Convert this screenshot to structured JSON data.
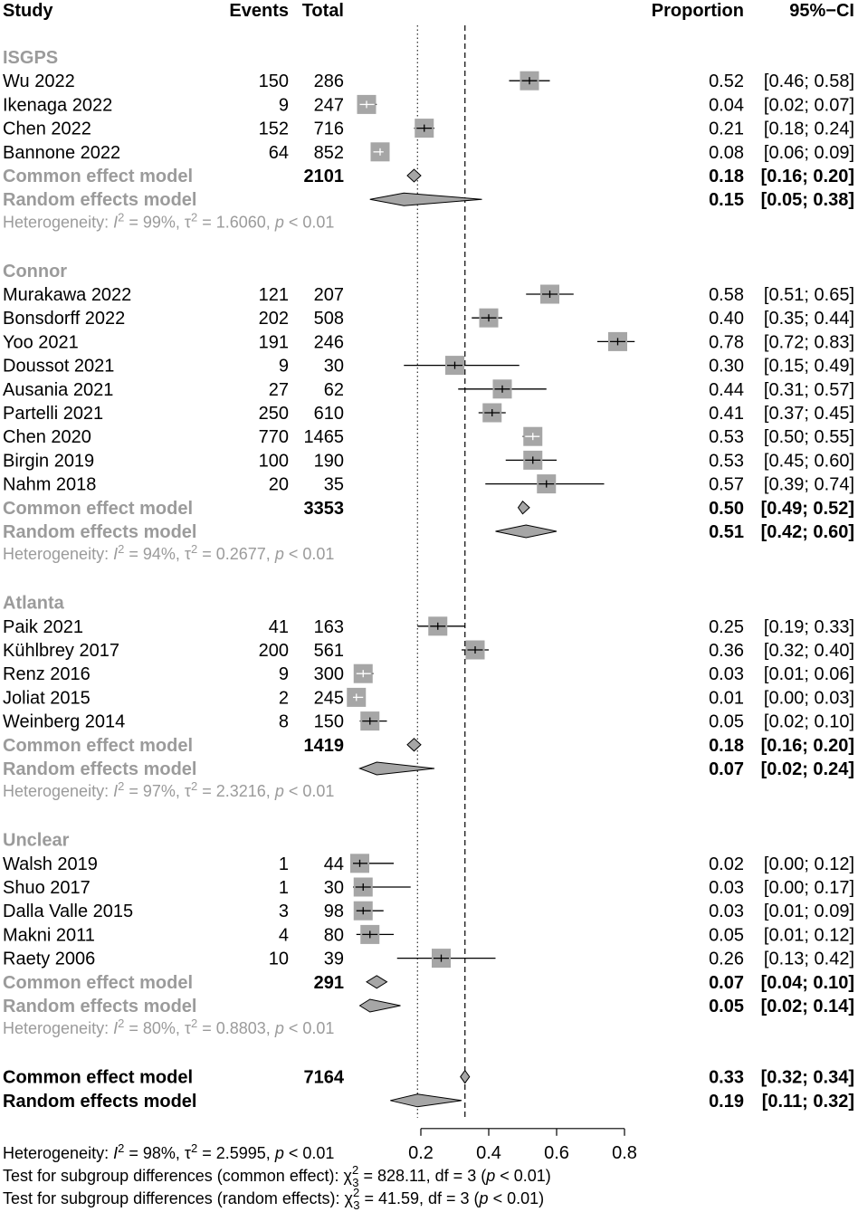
{
  "chart_data": {
    "type": "forest",
    "headers": {
      "study": "Study",
      "events": "Events",
      "total": "Total",
      "proportion": "Proportion",
      "ci": "95%−CI"
    },
    "x_axis": {
      "ticks": [
        "0.2",
        "0.4",
        "0.6",
        "0.8"
      ],
      "tick_values": [
        0.2,
        0.4,
        0.6,
        0.8
      ],
      "range": [
        0.2,
        0.8
      ]
    },
    "reference_lines": {
      "random_effects_overall": 0.19,
      "common_effect_overall": 0.33
    },
    "groups": [
      {
        "name": "ISGPS",
        "studies": [
          {
            "study": "Wu 2022",
            "events": "150",
            "total": "286",
            "prop": 0.52,
            "lo": 0.46,
            "hi": 0.58,
            "prop_text": "0.52",
            "ci_text": "[0.46; 0.58]",
            "weight": 0.9
          },
          {
            "study": "Ikenaga 2022",
            "events": "9",
            "total": "247",
            "prop": 0.04,
            "lo": 0.02,
            "hi": 0.07,
            "prop_text": "0.04",
            "ci_text": "[0.02; 0.07]",
            "weight": 0.9
          },
          {
            "study": "Chen 2022",
            "events": "152",
            "total": "716",
            "prop": 0.21,
            "lo": 0.18,
            "hi": 0.24,
            "prop_text": "0.21",
            "ci_text": "[0.18; 0.24]",
            "weight": 0.9
          },
          {
            "study": "Bannone 2022",
            "events": "64",
            "total": "852",
            "prop": 0.08,
            "lo": 0.06,
            "hi": 0.09,
            "prop_text": "0.08",
            "ci_text": "[0.06; 0.09]",
            "weight": 0.9
          }
        ],
        "common": {
          "label": "Common effect model",
          "total": "2101",
          "est": 0.18,
          "lo": 0.16,
          "hi": 0.2,
          "prop_text": "0.18",
          "ci_text": "[0.16; 0.20]"
        },
        "random": {
          "label": "Random effects model",
          "est": 0.15,
          "lo": 0.05,
          "hi": 0.38,
          "prop_text": "0.15",
          "ci_text": "[0.05; 0.38]"
        },
        "heterogeneity": {
          "prefix": "Heterogeneity: ",
          "i2_label": "I",
          "i2_val": " = 99%, ",
          "tau_label": "τ",
          "tau_val": " = 1.6060, ",
          "p_label": "p",
          "p_val": " < 0.01"
        }
      },
      {
        "name": "Connor",
        "studies": [
          {
            "study": "Murakawa 2022",
            "events": "121",
            "total": "207",
            "prop": 0.58,
            "lo": 0.51,
            "hi": 0.65,
            "prop_text": "0.58",
            "ci_text": "[0.51; 0.65]",
            "weight": 0.9
          },
          {
            "study": "Bonsdorff 2022",
            "events": "202",
            "total": "508",
            "prop": 0.4,
            "lo": 0.35,
            "hi": 0.44,
            "prop_text": "0.40",
            "ci_text": "[0.35; 0.44]",
            "weight": 0.9
          },
          {
            "study": "Yoo 2021",
            "events": "191",
            "total": "246",
            "prop": 0.78,
            "lo": 0.72,
            "hi": 0.83,
            "prop_text": "0.78",
            "ci_text": "[0.72; 0.83]",
            "weight": 0.9
          },
          {
            "study": "Doussot 2021",
            "events": "9",
            "total": "30",
            "prop": 0.3,
            "lo": 0.15,
            "hi": 0.49,
            "prop_text": "0.30",
            "ci_text": "[0.15; 0.49]",
            "weight": 0.9
          },
          {
            "study": "Ausania 2021",
            "events": "27",
            "total": "62",
            "prop": 0.44,
            "lo": 0.31,
            "hi": 0.57,
            "prop_text": "0.44",
            "ci_text": "[0.31; 0.57]",
            "weight": 0.9
          },
          {
            "study": "Partelli 2021",
            "events": "250",
            "total": "610",
            "prop": 0.41,
            "lo": 0.37,
            "hi": 0.45,
            "prop_text": "0.41",
            "ci_text": "[0.37; 0.45]",
            "weight": 0.9
          },
          {
            "study": "Chen 2020",
            "events": "770",
            "total": "1465",
            "prop": 0.53,
            "lo": 0.5,
            "hi": 0.55,
            "prop_text": "0.53",
            "ci_text": "[0.50; 0.55]",
            "weight": 0.9
          },
          {
            "study": "Birgin 2019",
            "events": "100",
            "total": "190",
            "prop": 0.53,
            "lo": 0.45,
            "hi": 0.6,
            "prop_text": "0.53",
            "ci_text": "[0.45; 0.60]",
            "weight": 0.9
          },
          {
            "study": "Nahm 2018",
            "events": "20",
            "total": "35",
            "prop": 0.57,
            "lo": 0.39,
            "hi": 0.74,
            "prop_text": "0.57",
            "ci_text": "[0.39; 0.74]",
            "weight": 0.9
          }
        ],
        "common": {
          "label": "Common effect model",
          "total": "3353",
          "est": 0.5,
          "lo": 0.49,
          "hi": 0.52,
          "prop_text": "0.50",
          "ci_text": "[0.49; 0.52]"
        },
        "random": {
          "label": "Random effects model",
          "est": 0.51,
          "lo": 0.42,
          "hi": 0.6,
          "prop_text": "0.51",
          "ci_text": "[0.42; 0.60]"
        },
        "heterogeneity": {
          "prefix": "Heterogeneity: ",
          "i2_label": "I",
          "i2_val": " = 94%, ",
          "tau_label": "τ",
          "tau_val": " = 0.2677, ",
          "p_label": "p",
          "p_val": " < 0.01"
        }
      },
      {
        "name": "Atlanta",
        "studies": [
          {
            "study": "Paik 2021",
            "events": "41",
            "total": "163",
            "prop": 0.25,
            "lo": 0.19,
            "hi": 0.33,
            "prop_text": "0.25",
            "ci_text": "[0.19; 0.33]",
            "weight": 0.9
          },
          {
            "study": "Kühlbrey 2017",
            "events": "200",
            "total": "561",
            "prop": 0.36,
            "lo": 0.32,
            "hi": 0.4,
            "prop_text": "0.36",
            "ci_text": "[0.32; 0.40]",
            "weight": 0.9
          },
          {
            "study": "Renz 2016",
            "events": "9",
            "total": "300",
            "prop": 0.03,
            "lo": 0.01,
            "hi": 0.06,
            "prop_text": "0.03",
            "ci_text": "[0.01; 0.06]",
            "weight": 0.9
          },
          {
            "study": "Joliat 2015",
            "events": "2",
            "total": "245",
            "prop": 0.01,
            "lo": 0.0,
            "hi": 0.03,
            "prop_text": "0.01",
            "ci_text": "[0.00; 0.03]",
            "weight": 0.9
          },
          {
            "study": "Weinberg 2014",
            "events": "8",
            "total": "150",
            "prop": 0.05,
            "lo": 0.02,
            "hi": 0.1,
            "prop_text": "0.05",
            "ci_text": "[0.02; 0.10]",
            "weight": 0.9
          }
        ],
        "common": {
          "label": "Common effect model",
          "total": "1419",
          "est": 0.18,
          "lo": 0.16,
          "hi": 0.2,
          "prop_text": "0.18",
          "ci_text": "[0.16; 0.20]"
        },
        "random": {
          "label": "Random effects model",
          "est": 0.07,
          "lo": 0.02,
          "hi": 0.24,
          "prop_text": "0.07",
          "ci_text": "[0.02; 0.24]"
        },
        "heterogeneity": {
          "prefix": "Heterogeneity: ",
          "i2_label": "I",
          "i2_val": " = 97%, ",
          "tau_label": "τ",
          "tau_val": " = 2.3216, ",
          "p_label": "p",
          "p_val": " < 0.01"
        }
      },
      {
        "name": "Unclear",
        "studies": [
          {
            "study": "Walsh 2019",
            "events": "1",
            "total": "44",
            "prop": 0.02,
            "lo": 0.0,
            "hi": 0.12,
            "prop_text": "0.02",
            "ci_text": "[0.00; 0.12]",
            "weight": 0.9
          },
          {
            "study": "Shuo 2017",
            "events": "1",
            "total": "30",
            "prop": 0.03,
            "lo": 0.0,
            "hi": 0.17,
            "prop_text": "0.03",
            "ci_text": "[0.00; 0.17]",
            "weight": 0.9
          },
          {
            "study": "Dalla Valle 2015",
            "events": "3",
            "total": "98",
            "prop": 0.03,
            "lo": 0.01,
            "hi": 0.09,
            "prop_text": "0.03",
            "ci_text": "[0.01; 0.09]",
            "weight": 0.9
          },
          {
            "study": "Makni 2011",
            "events": "4",
            "total": "80",
            "prop": 0.05,
            "lo": 0.01,
            "hi": 0.12,
            "prop_text": "0.05",
            "ci_text": "[0.01; 0.12]",
            "weight": 0.9
          },
          {
            "study": "Raety 2006",
            "events": "10",
            "total": "39",
            "prop": 0.26,
            "lo": 0.13,
            "hi": 0.42,
            "prop_text": "0.26",
            "ci_text": "[0.13; 0.42]",
            "weight": 0.9
          }
        ],
        "common": {
          "label": "Common effect model",
          "total": "291",
          "est": 0.07,
          "lo": 0.04,
          "hi": 0.1,
          "prop_text": "0.07",
          "ci_text": "[0.04; 0.10]"
        },
        "random": {
          "label": "Random effects model",
          "est": 0.05,
          "lo": 0.02,
          "hi": 0.14,
          "prop_text": "0.05",
          "ci_text": "[0.02; 0.14]"
        },
        "heterogeneity": {
          "prefix": "Heterogeneity: ",
          "i2_label": "I",
          "i2_val": " = 80%, ",
          "tau_label": "τ",
          "tau_val": " = 0.8803, ",
          "p_label": "p",
          "p_val": " < 0.01"
        }
      }
    ],
    "overall": {
      "common": {
        "label": "Common effect model",
        "total": "7164",
        "est": 0.33,
        "lo": 0.32,
        "hi": 0.34,
        "prop_text": "0.33",
        "ci_text": "[0.32; 0.34]"
      },
      "random": {
        "label": "Random effects model",
        "est": 0.19,
        "lo": 0.11,
        "hi": 0.32,
        "prop_text": "0.19",
        "ci_text": "[0.11; 0.32]"
      },
      "heterogeneity": {
        "prefix": "Heterogeneity: ",
        "i2_label": "I",
        "i2_val": " = 98%, ",
        "tau_label": "τ",
        "tau_val": " = 2.5995, ",
        "p_label": "p",
        "p_val": " < 0.01"
      },
      "subgroup_common": {
        "prefix": "Test for subgroup differences (common effect): ",
        "chi_label": "χ",
        "sup": "2",
        "sub": "3",
        "stat": " = 828.11, df = 3 (",
        "p_label": "p",
        "p_val": " < 0.01)"
      },
      "subgroup_random": {
        "prefix": "Test for subgroup differences (random effects): ",
        "chi_label": "χ",
        "sup": "2",
        "sub": "3",
        "stat": " = 41.59, df = 3 (",
        "p_label": "p",
        "p_val": " < 0.01)"
      }
    },
    "colors": {
      "box": "#a6a6a6",
      "diamond": "#a6a6a6",
      "group_text": "#9b9b9b",
      "line": "#000000"
    }
  }
}
